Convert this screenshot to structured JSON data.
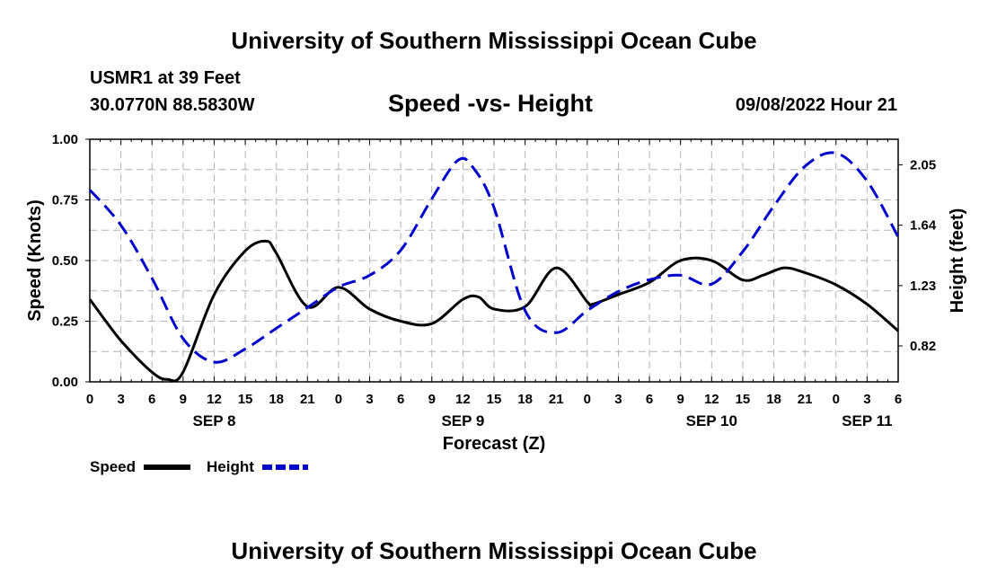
{
  "header": {
    "title": "University of Southern Mississippi Ocean Cube",
    "station": "USMR1 at 39 Feet",
    "coords": "30.0770N  88.5830W",
    "chart_title": "Speed -vs- Height",
    "datetime": "09/08/2022 Hour 21"
  },
  "footer": {
    "title": "University of Southern Mississippi Ocean Cube"
  },
  "chart_data": {
    "type": "line",
    "title": "Speed -vs- Height",
    "xlabel": "Forecast (Z)",
    "ylabel": "Speed (Knots)",
    "y2label": "Height (feet)",
    "xlim": [
      0,
      78
    ],
    "ylim": [
      0,
      1
    ],
    "y2lim": [
      0.576,
      2.224
    ],
    "x_ticks": [
      0,
      3,
      6,
      9,
      12,
      15,
      18,
      21,
      24,
      27,
      30,
      33,
      36,
      39,
      42,
      45,
      48,
      51,
      54,
      57,
      60,
      63,
      66,
      69,
      72,
      75,
      78
    ],
    "x_tick_labels": [
      "0",
      "3",
      "6",
      "9",
      "12",
      "15",
      "18",
      "21",
      "0",
      "3",
      "6",
      "9",
      "12",
      "15",
      "18",
      "21",
      "0",
      "3",
      "6",
      "9",
      "12",
      "15",
      "18",
      "21",
      "0",
      "3",
      "6"
    ],
    "date_labels": [
      {
        "x": 12,
        "label": "SEP 8"
      },
      {
        "x": 36,
        "label": "SEP 9"
      },
      {
        "x": 60,
        "label": "SEP 10"
      },
      {
        "x": 75,
        "label": "SEP 11"
      }
    ],
    "y_ticks": [
      0,
      0.25,
      0.5,
      0.75,
      1.0
    ],
    "y_tick_labels": [
      "0.00",
      "0.25",
      "0.50",
      "0.75",
      "1.00"
    ],
    "y2_ticks": [
      0.82,
      1.23,
      1.64,
      2.05
    ],
    "y2_tick_labels": [
      "0.82",
      "1.23",
      "1.64",
      "2.05"
    ],
    "grid": true,
    "legend": [
      {
        "name": "Speed",
        "color": "#000000",
        "dash": "solid"
      },
      {
        "name": "Height",
        "color": "#0000cc",
        "dash": "dashed"
      }
    ],
    "series": [
      {
        "name": "Speed",
        "axis": "left",
        "color": "#000000",
        "x": [
          0,
          3,
          6,
          7.5,
          9,
          12,
          15,
          17,
          18,
          21,
          24,
          27,
          30,
          33,
          36,
          37.5,
          39,
          42,
          45,
          48,
          48.5,
          51,
          54,
          57,
          60,
          63,
          65,
          67,
          69,
          72,
          75,
          78
        ],
        "y": [
          0.34,
          0.17,
          0.04,
          0.01,
          0.04,
          0.36,
          0.54,
          0.58,
          0.53,
          0.31,
          0.39,
          0.3,
          0.25,
          0.24,
          0.34,
          0.35,
          0.3,
          0.31,
          0.47,
          0.33,
          0.32,
          0.36,
          0.41,
          0.5,
          0.5,
          0.42,
          0.44,
          0.47,
          0.45,
          0.4,
          0.32,
          0.21
        ]
      },
      {
        "name": "Height",
        "axis": "right",
        "color": "#0000cc",
        "x": [
          0,
          3,
          6,
          9,
          12,
          15,
          18,
          21,
          24,
          27,
          30,
          33,
          35.5,
          37,
          39,
          42,
          45,
          48,
          51,
          54,
          57,
          60,
          63,
          66,
          69,
          72,
          75,
          78
        ],
        "y": [
          1.88,
          1.64,
          1.28,
          0.87,
          0.71,
          0.8,
          0.94,
          1.08,
          1.22,
          1.3,
          1.47,
          1.82,
          2.08,
          2.03,
          1.76,
          1.06,
          0.91,
          1.06,
          1.19,
          1.27,
          1.3,
          1.24,
          1.46,
          1.77,
          2.04,
          2.13,
          1.94,
          1.56
        ]
      }
    ]
  }
}
